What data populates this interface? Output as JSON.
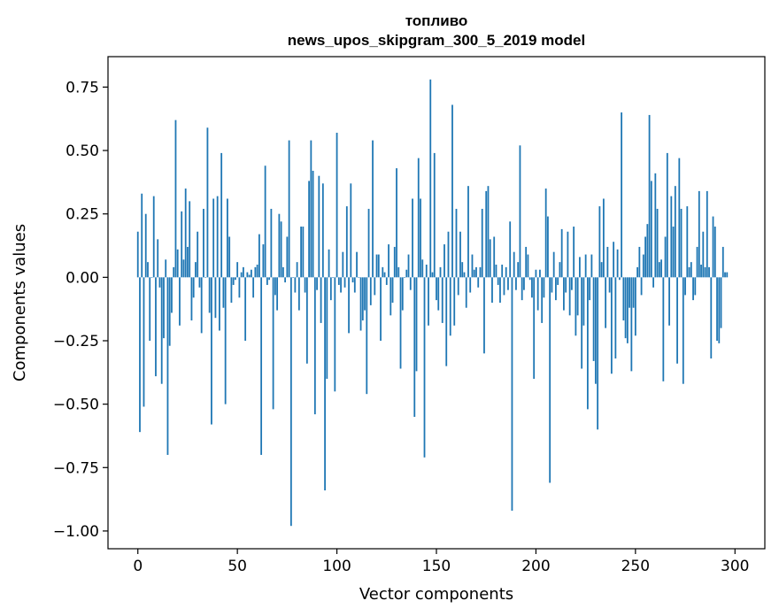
{
  "chart_data": {
    "type": "bar",
    "title": "топливо",
    "subtitle": "news_upos_skipgram_300_5_2019 model",
    "xlabel": "Vector components",
    "ylabel": "Components values",
    "xlim": [
      -15,
      315
    ],
    "ylim": [
      -1.07,
      0.87
    ],
    "xticks": [
      0,
      50,
      100,
      150,
      200,
      250,
      300
    ],
    "yticks": [
      -1.0,
      -0.75,
      -0.5,
      -0.25,
      0.0,
      0.25,
      0.5,
      0.75
    ],
    "ytick_labels": [
      "−1.00",
      "−0.75",
      "−0.50",
      "−0.25",
      "0.00",
      "0.25",
      "0.50",
      "0.75"
    ],
    "grid": false,
    "bar_color": "#1f77b4",
    "values": [
      0.18,
      -0.61,
      0.33,
      -0.51,
      0.25,
      0.06,
      -0.25,
      0.0,
      0.32,
      -0.39,
      0.15,
      -0.04,
      -0.42,
      -0.24,
      0.07,
      -0.7,
      -0.27,
      -0.14,
      0.04,
      0.62,
      0.11,
      -0.19,
      0.26,
      0.07,
      0.35,
      0.12,
      0.3,
      -0.17,
      -0.08,
      0.06,
      0.18,
      -0.04,
      -0.22,
      0.27,
      0.0,
      0.59,
      -0.14,
      -0.58,
      0.31,
      -0.16,
      0.32,
      -0.21,
      0.49,
      -0.12,
      -0.5,
      0.31,
      0.16,
      -0.1,
      -0.03,
      -0.01,
      0.06,
      -0.08,
      0.02,
      0.04,
      -0.25,
      0.02,
      0.01,
      0.03,
      -0.08,
      0.04,
      0.05,
      0.17,
      -0.7,
      0.13,
      0.44,
      -0.03,
      -0.01,
      0.27,
      -0.52,
      -0.07,
      -0.13,
      0.25,
      0.22,
      0.04,
      -0.02,
      0.16,
      0.54,
      -0.98,
      0.0,
      -0.06,
      0.06,
      -0.13,
      0.2,
      0.2,
      -0.06,
      -0.34,
      0.38,
      0.54,
      0.42,
      -0.54,
      -0.05,
      0.4,
      -0.18,
      0.37,
      -0.84,
      -0.4,
      0.11,
      -0.09,
      0.0,
      -0.45,
      0.57,
      -0.03,
      -0.06,
      0.1,
      -0.04,
      0.28,
      -0.22,
      0.37,
      -0.02,
      -0.06,
      0.1,
      0.0,
      -0.21,
      -0.17,
      -0.13,
      -0.46,
      0.27,
      -0.11,
      0.54,
      -0.07,
      0.09,
      0.09,
      -0.25,
      0.04,
      0.02,
      -0.03,
      0.13,
      -0.15,
      -0.1,
      0.12,
      0.43,
      0.04,
      -0.36,
      -0.13,
      0.0,
      0.03,
      0.09,
      -0.05,
      0.31,
      -0.55,
      -0.37,
      0.47,
      0.31,
      0.07,
      -0.71,
      0.05,
      -0.19,
      0.78,
      0.02,
      0.49,
      -0.09,
      -0.13,
      0.04,
      -0.18,
      0.13,
      -0.35,
      0.18,
      -0.23,
      0.68,
      -0.19,
      0.27,
      -0.07,
      0.18,
      0.06,
      0.02,
      -0.12,
      0.36,
      -0.06,
      0.09,
      0.03,
      0.04,
      -0.04,
      0.04,
      0.27,
      -0.3,
      0.34,
      0.36,
      0.15,
      -0.1,
      0.16,
      0.05,
      -0.03,
      -0.1,
      0.05,
      -0.07,
      0.04,
      -0.05,
      0.22,
      -0.92,
      0.1,
      -0.05,
      0.06,
      0.52,
      -0.09,
      -0.05,
      0.12,
      0.09,
      -0.01,
      -0.08,
      -0.4,
      0.03,
      -0.13,
      0.03,
      -0.18,
      -0.08,
      0.35,
      0.24,
      -0.81,
      -0.06,
      0.1,
      -0.09,
      -0.03,
      0.06,
      0.19,
      -0.13,
      -0.06,
      0.18,
      -0.15,
      -0.05,
      0.2,
      -0.23,
      -0.15,
      0.08,
      -0.36,
      -0.19,
      0.09,
      -0.52,
      -0.09,
      0.09,
      -0.33,
      -0.42,
      -0.6,
      0.28,
      0.06,
      0.31,
      -0.2,
      0.12,
      -0.06,
      -0.38,
      0.14,
      -0.32,
      0.11,
      -0.01,
      0.65,
      -0.17,
      -0.24,
      -0.26,
      -0.12,
      -0.37,
      -0.12,
      -0.23,
      0.04,
      0.12,
      -0.07,
      0.09,
      0.16,
      0.21,
      0.64,
      0.38,
      -0.04,
      0.41,
      0.27,
      0.06,
      0.07,
      -0.41,
      0.16,
      0.49,
      -0.19,
      0.32,
      0.2,
      0.36,
      -0.34,
      0.47,
      0.27,
      -0.42,
      -0.07,
      0.28,
      0.04,
      0.06,
      -0.09,
      -0.07,
      0.12,
      0.34,
      0.05,
      0.18,
      0.04,
      0.34,
      0.04,
      -0.32,
      0.24,
      0.2,
      -0.25,
      -0.26,
      -0.2,
      0.12,
      0.02,
      0.02
    ]
  }
}
